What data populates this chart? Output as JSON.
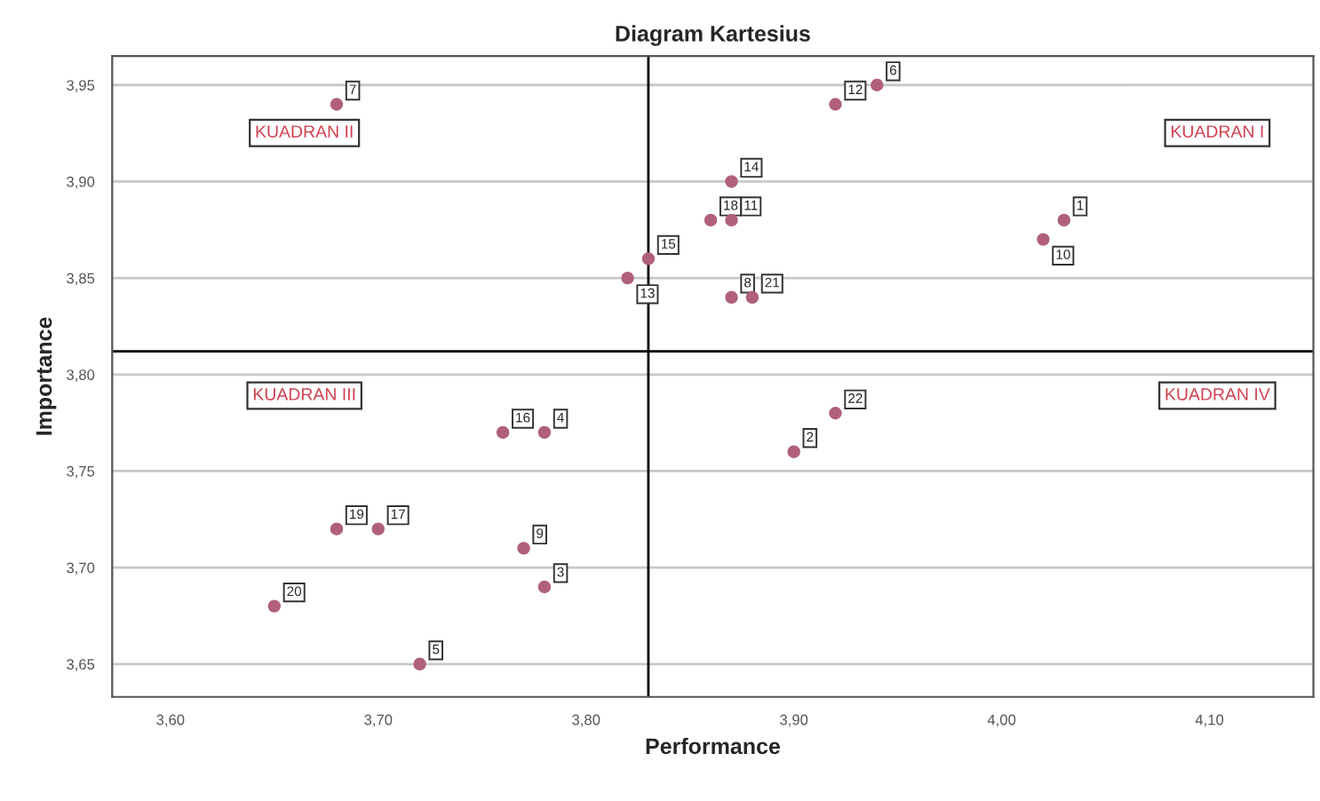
{
  "chart_data": {
    "type": "scatter",
    "title": "Diagram Kartesius",
    "xlabel": "Performance",
    "ylabel": "Importance",
    "series": [
      {
        "color": "#b0607a",
        "x": [
          4.03,
          3.9,
          3.78,
          3.78,
          3.72,
          3.94,
          3.68,
          3.87,
          3.77,
          4.02,
          3.87,
          3.92,
          3.82,
          3.87,
          3.83,
          3.76,
          3.7,
          3.86,
          3.68,
          3.65,
          3.88,
          3.92
        ],
        "values": [
          3.88,
          3.76,
          3.69,
          3.77,
          3.65,
          3.95,
          3.94,
          3.84,
          3.71,
          3.87,
          3.88,
          3.94,
          3.85,
          3.9,
          3.86,
          3.77,
          3.72,
          3.88,
          3.72,
          3.68,
          3.84,
          3.78
        ]
      }
    ],
    "marker": "circle",
    "annotations": [
      "KUADRAN I",
      "KUADRAN II",
      "KUADRAN III",
      "KUADRAN IV",
      {
        "text": "1",
        "x": 4.03,
        "y": 3.88
      },
      {
        "text": "2",
        "x": 3.9,
        "y": 3.76
      },
      {
        "text": "3",
        "x": 3.78,
        "y": 3.69
      },
      {
        "text": "4",
        "x": 3.78,
        "y": 3.77
      },
      {
        "text": "5",
        "x": 3.72,
        "y": 3.65
      },
      {
        "text": "6",
        "x": 3.94,
        "y": 3.95
      },
      {
        "text": "7",
        "x": 3.68,
        "y": 3.94
      },
      {
        "text": "8",
        "x": 3.87,
        "y": 3.84
      },
      {
        "text": "9",
        "x": 3.77,
        "y": 3.71
      },
      {
        "text": "10",
        "x": 4.02,
        "y": 3.87
      },
      {
        "text": "11",
        "x": 3.87,
        "y": 3.88
      },
      {
        "text": "12",
        "x": 3.92,
        "y": 3.94
      },
      {
        "text": "13",
        "x": 3.82,
        "y": 3.85
      },
      {
        "text": "14",
        "x": 3.87,
        "y": 3.9
      },
      {
        "text": "15",
        "x": 3.83,
        "y": 3.86
      },
      {
        "text": "16",
        "x": 3.76,
        "y": 3.77
      },
      {
        "text": "17",
        "x": 3.7,
        "y": 3.72
      },
      {
        "text": "18",
        "x": 3.86,
        "y": 3.88
      },
      {
        "text": "19",
        "x": 3.68,
        "y": 3.72
      },
      {
        "text": "20",
        "x": 3.65,
        "y": 3.68
      },
      {
        "text": "21",
        "x": 3.88,
        "y": 3.84
      },
      {
        "text": "22",
        "x": 3.92,
        "y": 3.78
      }
    ],
    "ref_lines": [
      {
        "axis": "x",
        "value": 3.83,
        "color": "#000000"
      },
      {
        "axis": "y",
        "value": 3.812,
        "color": "#000000"
      }
    ],
    "xlim": [
      3.572,
      4.15
    ],
    "xticks": [
      {
        "value": 3.6,
        "label": "3,60"
      },
      {
        "value": 3.7,
        "label": "3,70"
      },
      {
        "value": 3.8,
        "label": "3,80"
      },
      {
        "value": 3.9,
        "label": "3,90"
      },
      {
        "value": 4.0,
        "label": "4,00"
      },
      {
        "value": 4.1,
        "label": "4,10"
      }
    ],
    "ylim": [
      3.633,
      3.965
    ],
    "yticks": [
      {
        "value": 3.65,
        "label": "3,65"
      },
      {
        "value": 3.7,
        "label": "3,70"
      },
      {
        "value": 3.75,
        "label": "3,75"
      },
      {
        "value": 3.8,
        "label": "3,80"
      },
      {
        "value": 3.85,
        "label": "3,85"
      },
      {
        "value": 3.9,
        "label": "3,90"
      },
      {
        "value": 3.95,
        "label": "3,95"
      }
    ],
    "grid": "y"
  }
}
